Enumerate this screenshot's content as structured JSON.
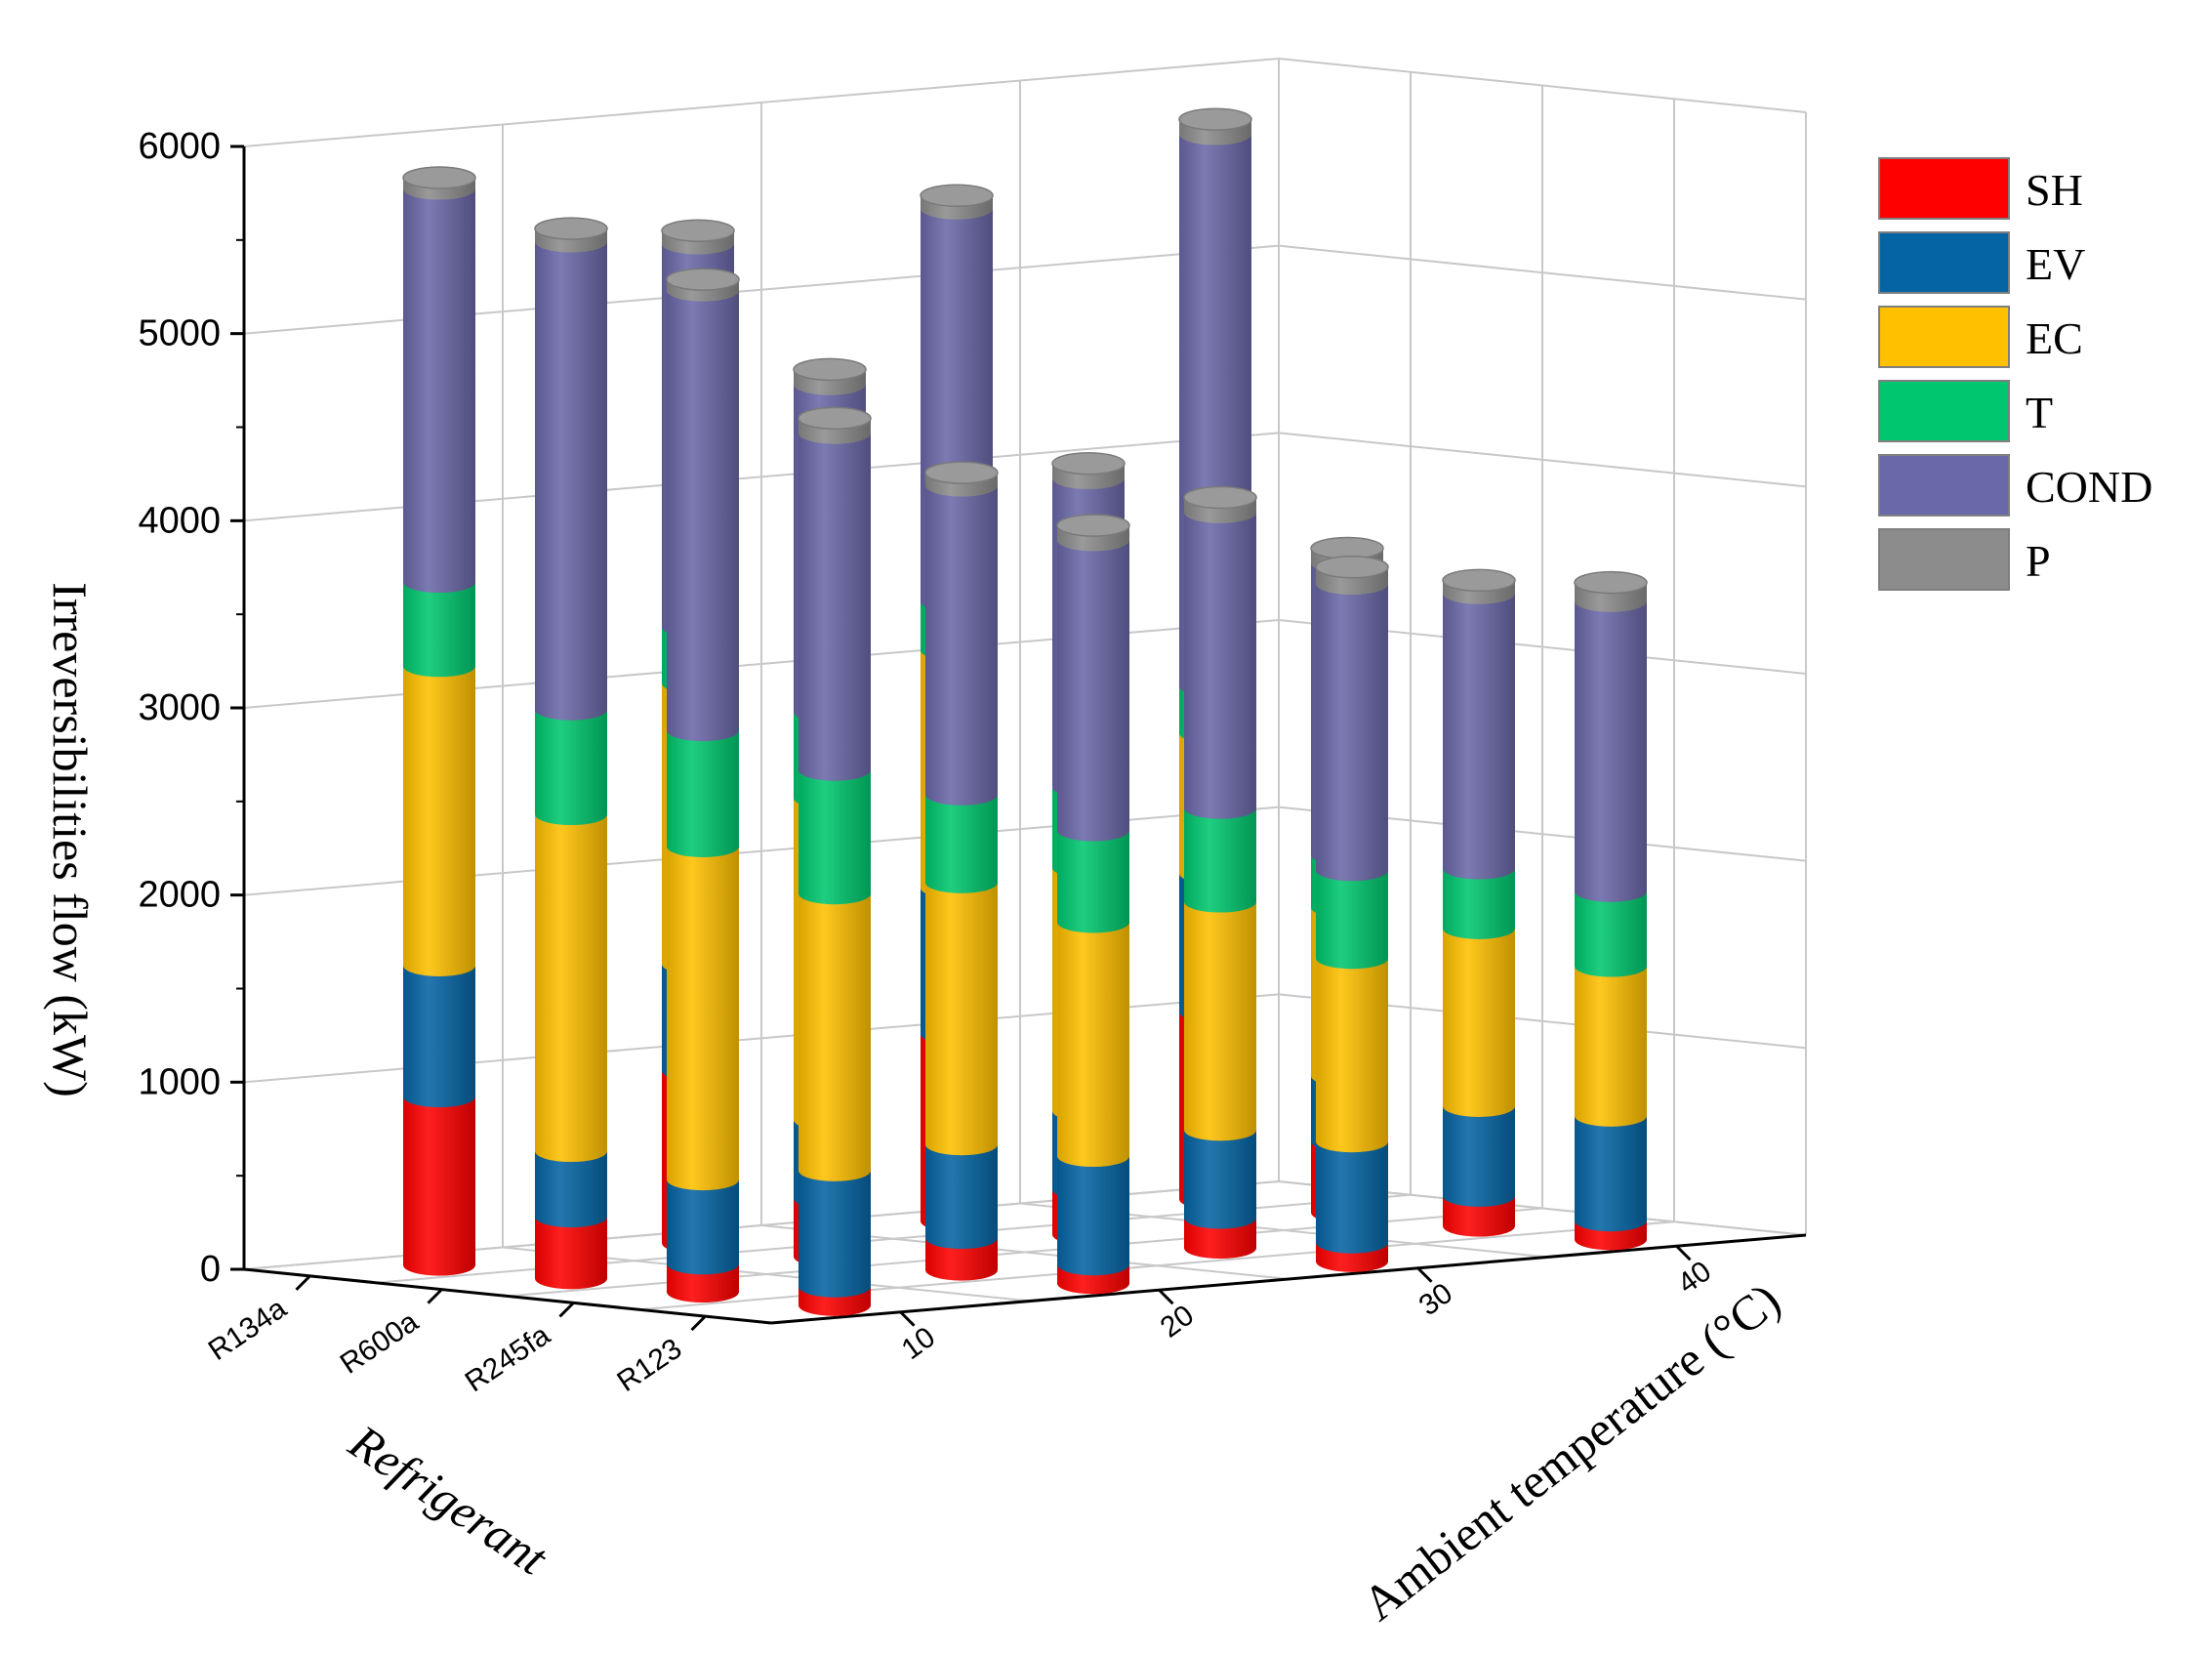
{
  "chart_data": {
    "type": "3d-stacked-cylinder-bar",
    "title": "",
    "ylabel": "Irreversibilities flow (kW)",
    "xlabel": "Refrigerant",
    "zlabel": "Ambient temperature (°C)",
    "ylim": [
      0,
      6000
    ],
    "yticks": [
      "0",
      "1000",
      "2000",
      "3000",
      "4000",
      "5000",
      "6000"
    ],
    "refrigerants": [
      "R134a",
      "R600a",
      "R245fa",
      "R123"
    ],
    "temperatures": [
      "10",
      "20",
      "30",
      "40"
    ],
    "components": [
      {
        "name": "SH",
        "color": "#ff0000"
      },
      {
        "name": "EV",
        "color": "#0565a4"
      },
      {
        "name": "EC",
        "color": "#ffc000"
      },
      {
        "name": "T",
        "color": "#00c76f"
      },
      {
        "name": "COND",
        "color": "#6a68a8"
      },
      {
        "name": "P",
        "color": "#8c8c8c"
      }
    ],
    "bars": [
      {
        "refrigerant": "R134a",
        "temperature": "10",
        "values": [
          900,
          700,
          1600,
          450,
          2100,
          60
        ]
      },
      {
        "refrigerant": "R134a",
        "temperature": "20",
        "values": [
          920,
          570,
          1500,
          300,
          2050,
          70
        ]
      },
      {
        "refrigerant": "R134a",
        "temperature": "30",
        "values": [
          1000,
          780,
          1270,
          260,
          2100,
          70
        ]
      },
      {
        "refrigerant": "R134a",
        "temperature": "40",
        "values": [
          1000,
          740,
          750,
          250,
          2950,
          80
        ]
      },
      {
        "refrigerant": "R600a",
        "temperature": "10",
        "values": [
          330,
          350,
          1800,
          560,
          2500,
          70
        ]
      },
      {
        "refrigerant": "R600a",
        "temperature": "20",
        "values": [
          310,
          420,
          1720,
          460,
          1750,
          80
        ]
      },
      {
        "refrigerant": "R600a",
        "temperature": "30",
        "values": [
          240,
          420,
          1300,
          430,
          1650,
          80
        ]
      },
      {
        "refrigerant": "R600a",
        "temperature": "40",
        "values": [
          380,
          350,
          900,
          280,
          1560,
          80
        ]
      },
      {
        "refrigerant": "R245fa",
        "temperature": "10",
        "values": [
          150,
          450,
          1780,
          620,
          2350,
          60
        ]
      },
      {
        "refrigerant": "R245fa",
        "temperature": "20",
        "values": [
          170,
          500,
          1400,
          470,
          1650,
          70
        ]
      },
      {
        "refrigerant": "R245fa",
        "temperature": "30",
        "values": [
          160,
          470,
          1220,
          500,
          1580,
          80
        ]
      },
      {
        "refrigerant": "R245fa",
        "temperature": "40",
        "values": [
          160,
          480,
          950,
          320,
          1470,
          70
        ]
      },
      {
        "refrigerant": "R123",
        "temperature": "10",
        "values": [
          100,
          620,
          1480,
          660,
          1800,
          80
        ]
      },
      {
        "refrigerant": "R123",
        "temperature": "20",
        "values": [
          100,
          580,
          1250,
          490,
          1550,
          80
        ]
      },
      {
        "refrigerant": "R123",
        "temperature": "30",
        "values": [
          100,
          540,
          980,
          470,
          1530,
          90
        ]
      },
      {
        "refrigerant": "R123",
        "temperature": "40",
        "values": [
          100,
          560,
          800,
          400,
          1550,
          100
        ]
      }
    ]
  }
}
